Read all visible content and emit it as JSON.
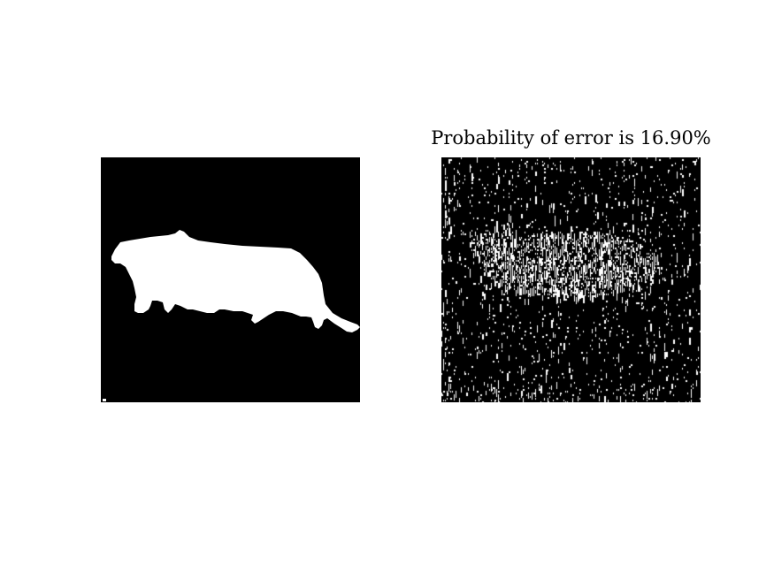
{
  "right_panel": {
    "title": "Probability of error is 16.90%"
  },
  "colors": {
    "background": "#000000",
    "foreground": "#ffffff",
    "page": "#ffffff"
  }
}
